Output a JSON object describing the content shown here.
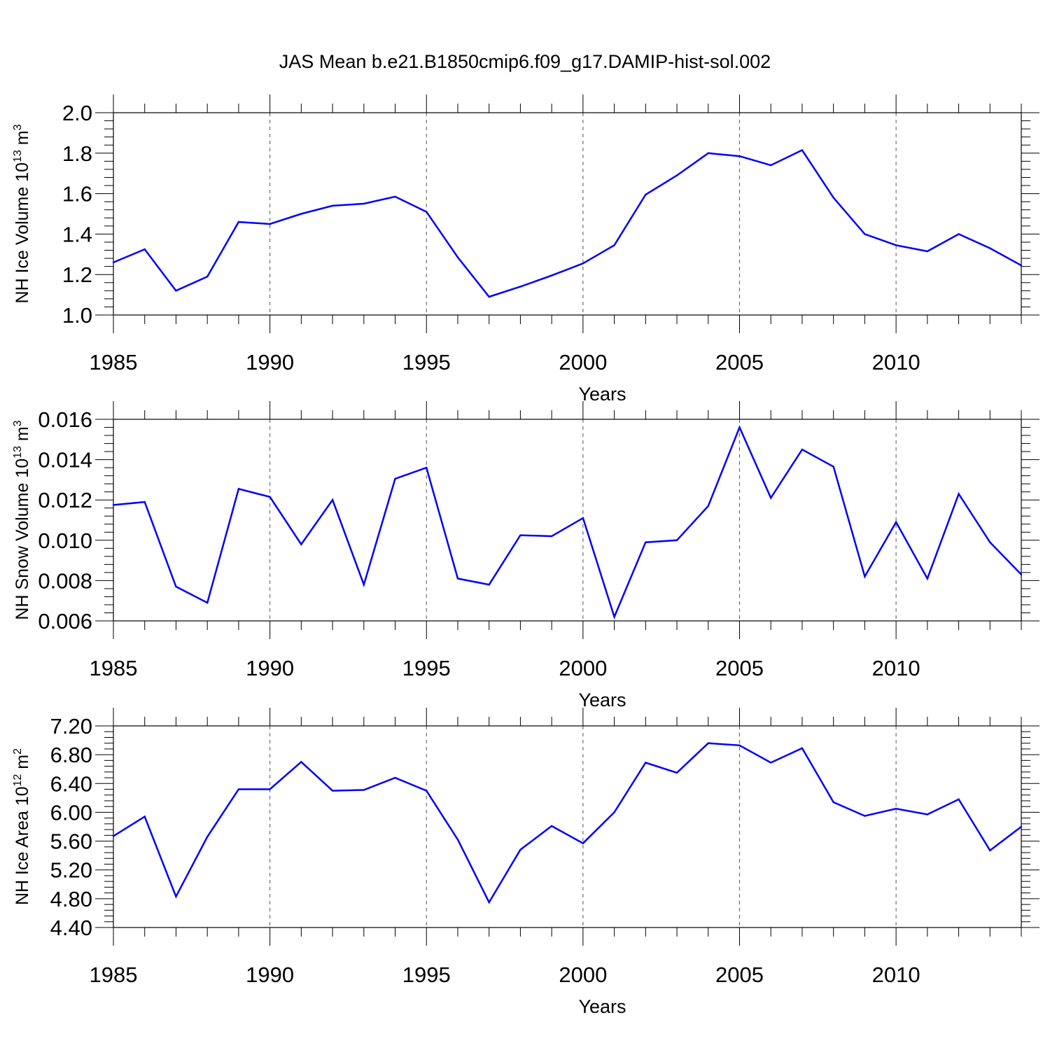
{
  "title": "JAS Mean b.e21.B1850cmip6.f09_g17.DAMIP-hist-sol.002",
  "colors": {
    "line": "#0000ff",
    "axis": "#000000",
    "grid": "#555555"
  },
  "chart_data": [
    {
      "type": "line",
      "name": "ice-volume",
      "ylabel": "NH Ice Volume 10",
      "ylabel_exp": "13",
      "ylabel_unit": " m",
      "ylabel_unit_exp": "3",
      "xlabel": "Years",
      "xlim": [
        1985,
        2014
      ],
      "ylim": [
        1.0,
        2.0
      ],
      "xticks": [
        "1985",
        "1990",
        "1995",
        "2000",
        "2005",
        "2010"
      ],
      "yticks": [
        "1.0",
        "1.2",
        "1.4",
        "1.6",
        "1.8",
        "2.0"
      ],
      "x": [
        1985,
        1986,
        1987,
        1988,
        1989,
        1990,
        1991,
        1992,
        1993,
        1994,
        1995,
        1996,
        1997,
        1998,
        1999,
        2000,
        2001,
        2002,
        2003,
        2004,
        2005,
        2006,
        2007,
        2008,
        2009,
        2010,
        2011,
        2012,
        2013,
        2014
      ],
      "y": [
        1.26,
        1.325,
        1.12,
        1.19,
        1.46,
        1.45,
        1.5,
        1.54,
        1.55,
        1.585,
        1.51,
        1.285,
        1.09,
        1.14,
        1.195,
        1.255,
        1.345,
        1.595,
        1.69,
        1.8,
        1.785,
        1.74,
        1.815,
        1.58,
        1.4,
        1.345,
        1.315,
        1.4,
        1.33,
        1.245
      ]
    },
    {
      "type": "line",
      "name": "snow-volume",
      "ylabel": "NH Snow Volume 10",
      "ylabel_exp": "13",
      "ylabel_unit": " m",
      "ylabel_unit_exp": "3",
      "xlabel": "Years",
      "xlim": [
        1985,
        2014
      ],
      "ylim": [
        0.006,
        0.016
      ],
      "xticks": [
        "1985",
        "1990",
        "1995",
        "2000",
        "2005",
        "2010"
      ],
      "yticks": [
        "0.006",
        "0.008",
        "0.010",
        "0.012",
        "0.014",
        "0.016"
      ],
      "x": [
        1985,
        1986,
        1987,
        1988,
        1989,
        1990,
        1991,
        1992,
        1993,
        1994,
        1995,
        1996,
        1997,
        1998,
        1999,
        2000,
        2001,
        2002,
        2003,
        2004,
        2005,
        2006,
        2007,
        2008,
        2009,
        2010,
        2011,
        2012,
        2013,
        2014
      ],
      "y": [
        0.01175,
        0.0119,
        0.0077,
        0.0069,
        0.01255,
        0.01215,
        0.0098,
        0.012,
        0.0078,
        0.01305,
        0.0136,
        0.0081,
        0.0078,
        0.01025,
        0.0102,
        0.0111,
        0.0062,
        0.0099,
        0.01,
        0.0117,
        0.0156,
        0.0121,
        0.0145,
        0.01365,
        0.0082,
        0.0109,
        0.0081,
        0.0123,
        0.0099,
        0.0083
      ]
    },
    {
      "type": "line",
      "name": "ice-area",
      "ylabel": "NH Ice Area 10",
      "ylabel_exp": "12",
      "ylabel_unit": " m",
      "ylabel_unit_exp": "2",
      "xlabel": "Years",
      "xlim": [
        1985,
        2014
      ],
      "ylim": [
        4.4,
        7.2
      ],
      "xticks": [
        "1985",
        "1990",
        "1995",
        "2000",
        "2005",
        "2010"
      ],
      "yticks": [
        "4.40",
        "4.80",
        "5.20",
        "5.60",
        "6.00",
        "6.40",
        "6.80",
        "7.20"
      ],
      "x": [
        1985,
        1986,
        1987,
        1988,
        1989,
        1990,
        1991,
        1992,
        1993,
        1994,
        1995,
        1996,
        1997,
        1998,
        1999,
        2000,
        2001,
        2002,
        2003,
        2004,
        2005,
        2006,
        2007,
        2008,
        2009,
        2010,
        2011,
        2012,
        2013,
        2014
      ],
      "y": [
        5.67,
        5.94,
        4.83,
        5.66,
        6.32,
        6.32,
        6.7,
        6.3,
        6.31,
        6.48,
        6.3,
        5.62,
        4.75,
        5.48,
        5.81,
        5.57,
        6.0,
        6.69,
        6.55,
        6.96,
        6.93,
        6.69,
        6.89,
        6.14,
        5.95,
        6.05,
        5.97,
        6.18,
        5.47,
        5.8
      ]
    }
  ]
}
